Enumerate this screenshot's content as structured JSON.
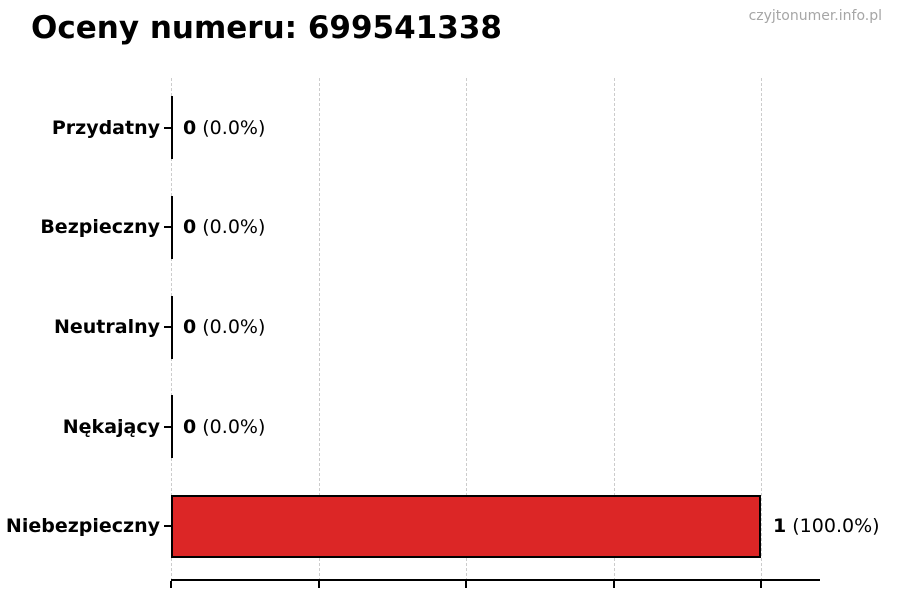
{
  "chart_data": {
    "type": "bar",
    "orientation": "horizontal",
    "title": "Oceny numeru: 699541338",
    "watermark": "czyjtonumer.info.pl",
    "categories": [
      "Przydatny",
      "Bezpieczny",
      "Neutralny",
      "Nękający",
      "Niebezpieczny"
    ],
    "values": [
      0,
      0,
      0,
      0,
      1
    ],
    "counts": [
      "0",
      "0",
      "0",
      "0",
      "1"
    ],
    "percent_labels": [
      "(0.0%)",
      "(0.0%)",
      "(0.0%)",
      "(0.0%)",
      "(100.0%)"
    ],
    "xlabel": "",
    "ylabel": "",
    "xlim": [
      0,
      1.1
    ],
    "xticks": [
      0,
      0.25,
      0.5,
      0.75,
      1.0
    ],
    "grid": true,
    "legend": "none",
    "colors": {
      "bar_fill": "#dc2626",
      "bar_edge": "#000000",
      "gridline": "#cccccc",
      "axis": "#000000",
      "text": "#000000",
      "watermark": "#a6a6a6",
      "background": "#ffffff"
    }
  }
}
